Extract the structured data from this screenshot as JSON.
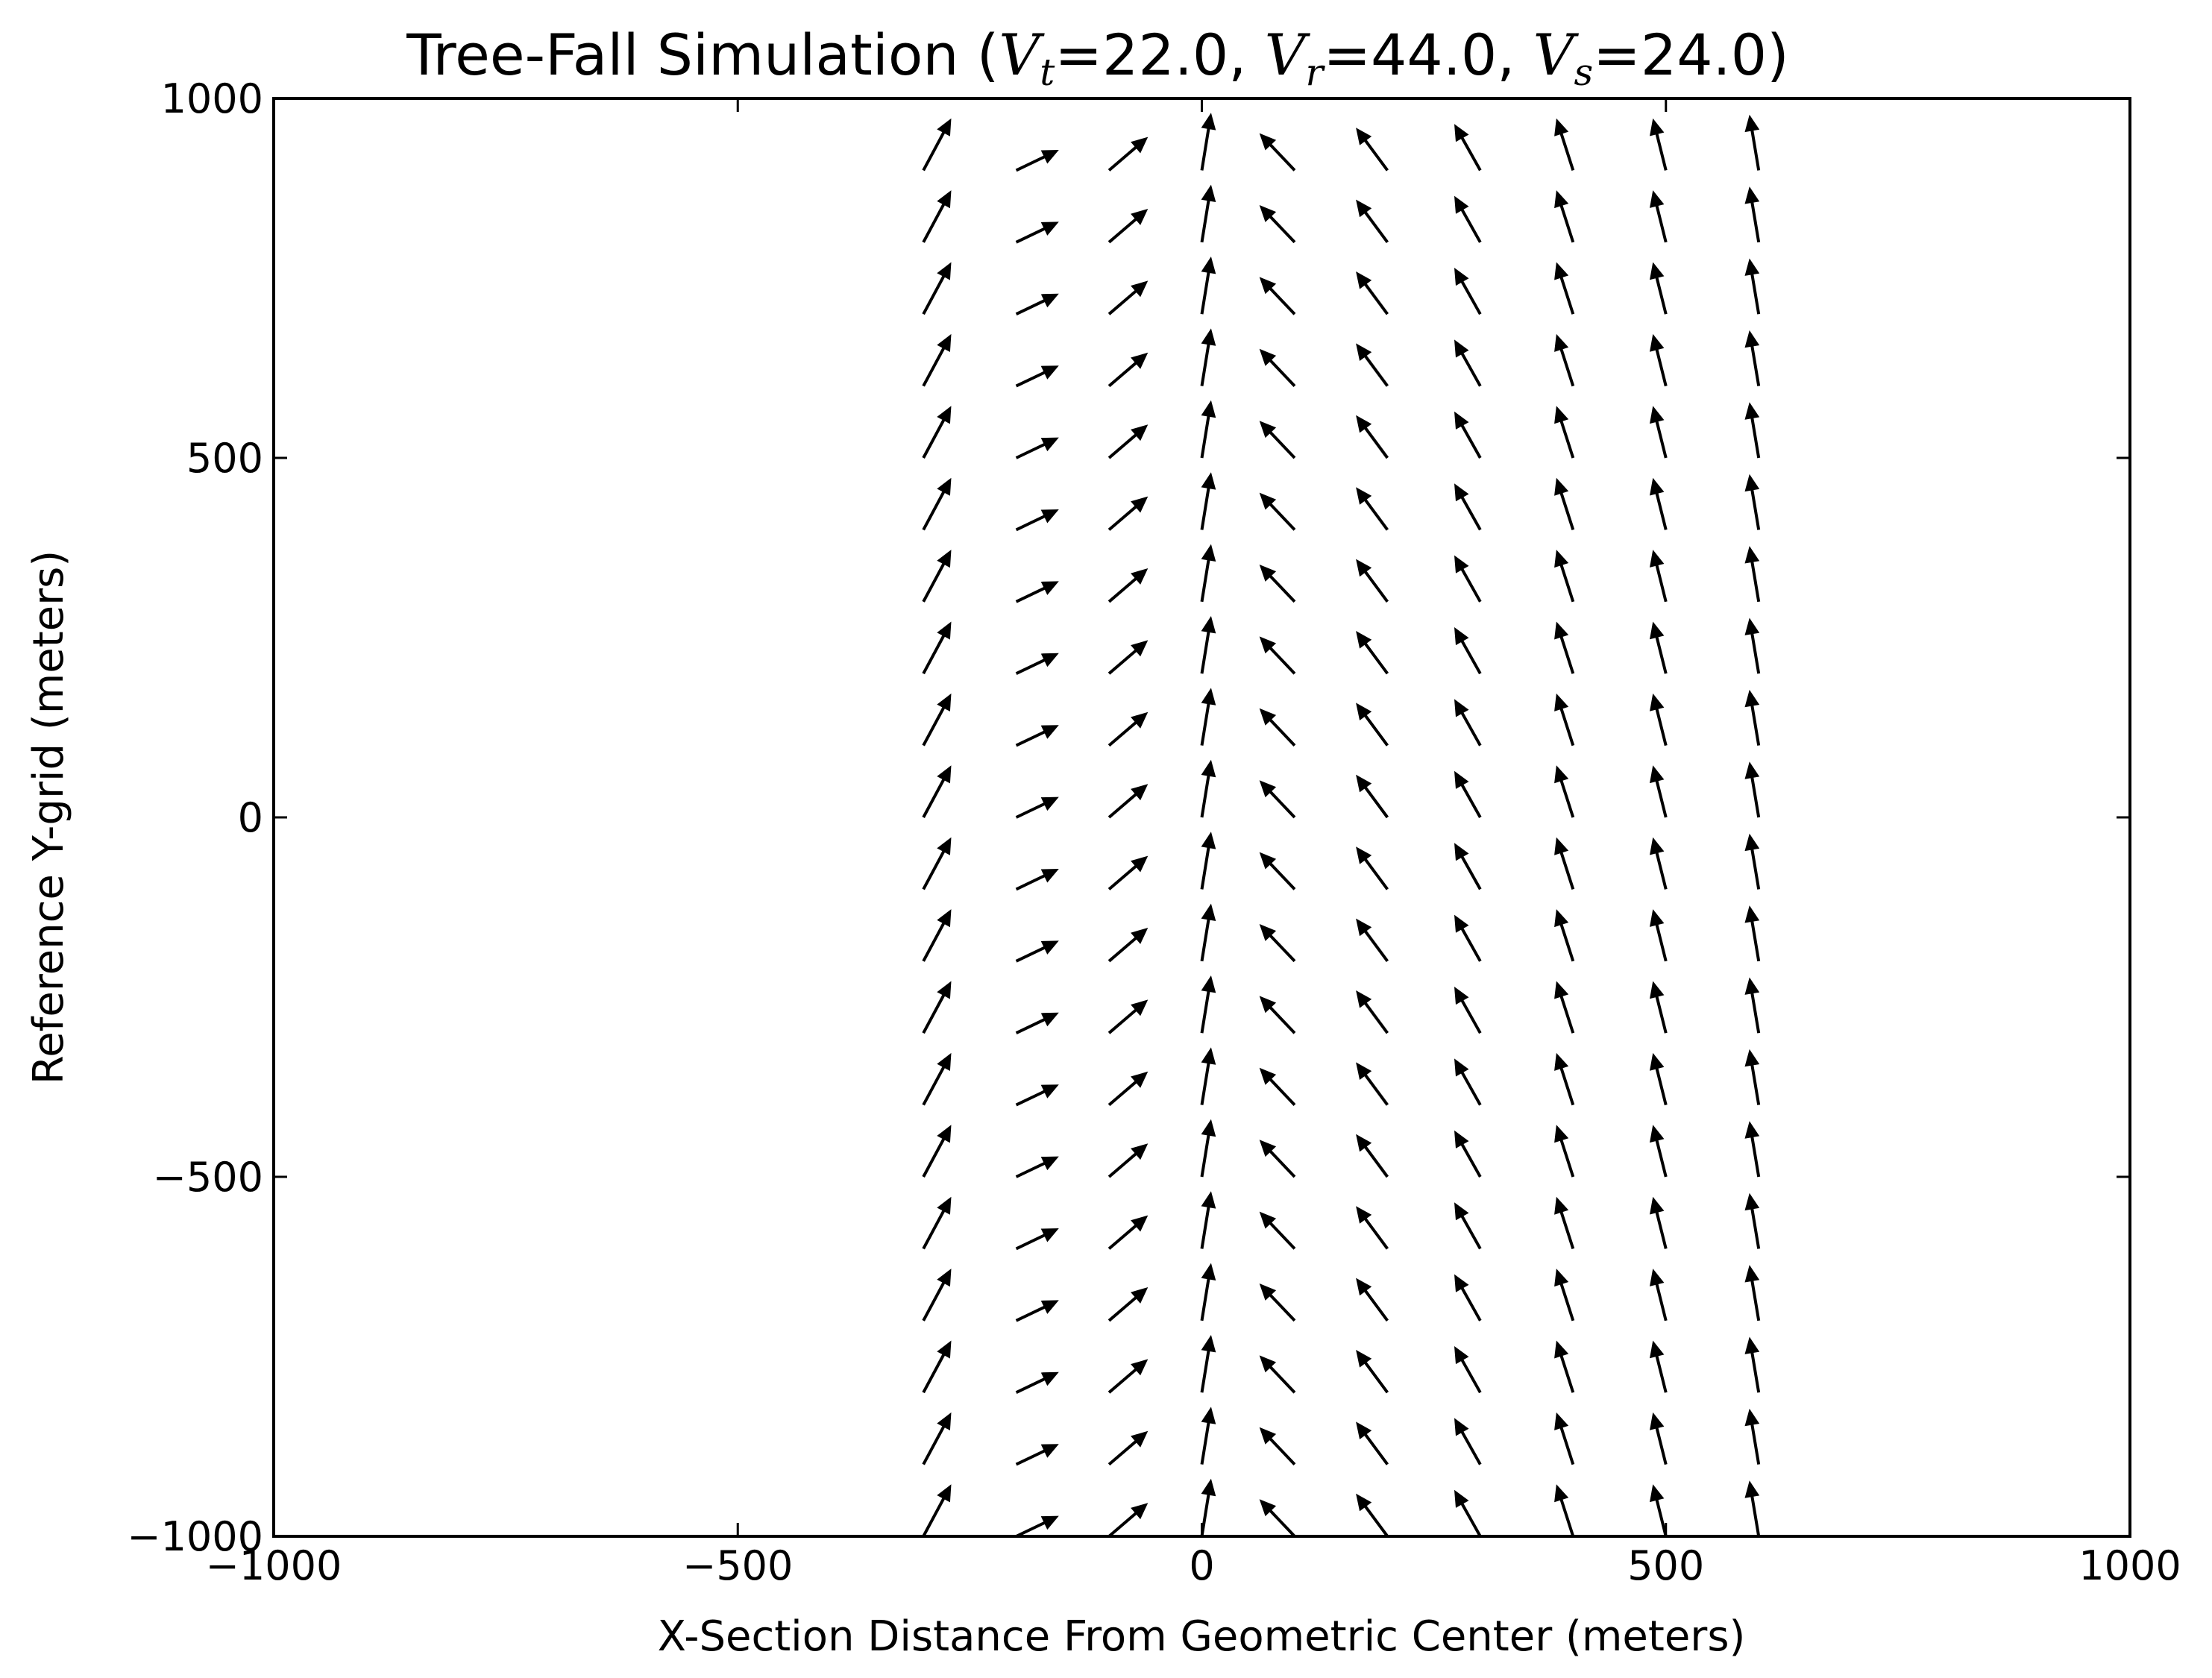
{
  "chart_data": {
    "type": "quiver",
    "title": {
      "prefix": "Tree-Fall Simulation (",
      "params": [
        {
          "symbol": "V",
          "subscript": "t",
          "value": "=22.0",
          "separator": ", "
        },
        {
          "symbol": "V",
          "subscript": "r",
          "value": "=44.0",
          "separator": ", "
        },
        {
          "symbol": "V",
          "subscript": "s",
          "value": "=24.0",
          "separator": ""
        }
      ],
      "suffix": ")"
    },
    "xlabel": "X-Section Distance From Geometric Center (meters)",
    "ylabel": "Reference Y-grid (meters)",
    "xlim": [
      -1000,
      1000
    ],
    "ylim": [
      -1000,
      1000
    ],
    "xticks": [
      -1000,
      -500,
      0,
      500,
      1000
    ],
    "yticks": [
      -1000,
      -500,
      0,
      500,
      1000
    ],
    "xtick_labels": [
      "−1000",
      "−500",
      "0",
      "500",
      "1000"
    ],
    "ytick_labels": [
      "−1000",
      "−500",
      "0",
      "500",
      "1000"
    ],
    "grid": false,
    "legend": "none",
    "arrow_color": "#000000",
    "y_positions": [
      -1000,
      -900,
      -800,
      -700,
      -600,
      -500,
      -400,
      -300,
      -200,
      -100,
      0,
      100,
      200,
      300,
      400,
      500,
      600,
      700,
      800,
      900
    ],
    "columns": [
      {
        "x": -300,
        "u": 30,
        "v": 56
      },
      {
        "x": -200,
        "u": 46,
        "v": 22
      },
      {
        "x": -100,
        "u": 42,
        "v": 36
      },
      {
        "x": 0,
        "u": 10,
        "v": 62
      },
      {
        "x": 100,
        "u": -38,
        "v": 40
      },
      {
        "x": 200,
        "u": -34,
        "v": 46
      },
      {
        "x": 300,
        "u": -28,
        "v": 50
      },
      {
        "x": 400,
        "u": -18,
        "v": 56
      },
      {
        "x": 500,
        "u": -14,
        "v": 56
      },
      {
        "x": 600,
        "u": -10,
        "v": 60
      }
    ]
  }
}
